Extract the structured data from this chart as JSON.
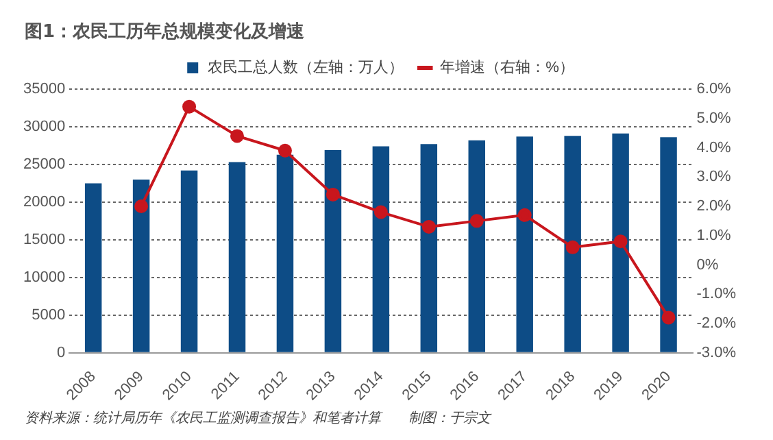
{
  "chart_data": {
    "type": "bar",
    "title": "图1：农民工历年总规模变化及增速",
    "categories": [
      "2008",
      "2009",
      "2010",
      "2011",
      "2012",
      "2013",
      "2014",
      "2015",
      "2016",
      "2017",
      "2018",
      "2019",
      "2020"
    ],
    "series": [
      {
        "name": "农民工总人数（左轴：万人）",
        "color": "#0d4c86",
        "values": [
          22500,
          23000,
          24200,
          25300,
          26300,
          26900,
          27400,
          27700,
          28200,
          28700,
          28800,
          29100,
          28600
        ]
      },
      {
        "name": "年增速（右轴：%）",
        "type": "line",
        "axis": "y2",
        "color": "#c8161d",
        "marker": "circle",
        "values": [
          null,
          2.0,
          5.4,
          4.4,
          3.9,
          2.4,
          1.8,
          1.3,
          1.5,
          1.7,
          0.6,
          0.8,
          -1.8
        ]
      }
    ],
    "ylim": [
      0,
      35000
    ],
    "yticks": [
      0,
      5000,
      10000,
      15000,
      20000,
      25000,
      30000,
      35000
    ],
    "y2lim": [
      -3,
      6
    ],
    "y2ticks": [
      {
        "value": -3,
        "label": "-3.0%"
      },
      {
        "value": -2,
        "label": "-2.0%"
      },
      {
        "value": -1,
        "label": "-1.0%"
      },
      {
        "value": 0,
        "label": "0%"
      },
      {
        "value": 1,
        "label": "1.0%"
      },
      {
        "value": 2,
        "label": "2.0%"
      },
      {
        "value": 3,
        "label": "3.0%"
      },
      {
        "value": 4,
        "label": "4.0%"
      },
      {
        "value": 5,
        "label": "5.0%"
      },
      {
        "value": 6,
        "label": "6.0%"
      }
    ],
    "grid": "y",
    "legend": "top",
    "annotations": [
      "资料来源：统计局历年《农民工监测调查报告》和笔者计算　　制图：于宗文"
    ]
  }
}
